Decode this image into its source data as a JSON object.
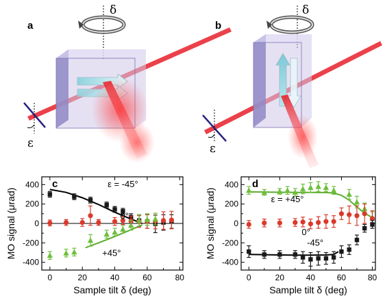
{
  "panels": {
    "a": {
      "letter": "a",
      "delta_symbol": "δ",
      "epsilon_symbol": "ε"
    },
    "b": {
      "letter": "b",
      "delta_symbol": "δ",
      "epsilon_symbol": "ε"
    }
  },
  "colors": {
    "black_series": "#1a1a1a",
    "red_series": "#d93a2b",
    "green_series": "#6fbf3c",
    "fit_black": "#000000",
    "fit_green": "#5cab2e",
    "box_face": "#cfc8ea",
    "box_side": "#8f88c6",
    "laser": "#e8202a"
  },
  "chart_data": [
    {
      "panel": "c",
      "type": "scatter",
      "xlabel": "Sample tilt δ (deg)",
      "ylabel": "MO signal (μrad)",
      "xlim": [
        -5,
        82
      ],
      "ylim": [
        -480,
        480
      ],
      "xticks": [
        0,
        20,
        40,
        60,
        80
      ],
      "yticks": [
        -400,
        -200,
        0,
        200,
        400
      ],
      "x_minor_ticks": [
        10,
        30,
        50,
        70
      ],
      "y_minor_ticks": [
        -300,
        -100,
        100,
        300
      ],
      "zero_line": true,
      "series": [
        {
          "name": "ε = -45°",
          "marker": "square",
          "color": "#1a1a1a",
          "x": [
            0,
            15,
            25,
            35,
            40,
            45,
            50,
            55,
            60,
            65,
            70,
            75
          ],
          "y": [
            300,
            275,
            240,
            190,
            145,
            125,
            65,
            30,
            20,
            -5,
            10,
            20
          ],
          "err": [
            30,
            30,
            30,
            30,
            30,
            30,
            35,
            60,
            70,
            90,
            80,
            70
          ]
        },
        {
          "name": "0°",
          "marker": "circle",
          "color": "#d93a2b",
          "x": [
            0,
            10,
            20,
            25,
            30,
            40,
            45,
            50,
            55,
            60,
            65,
            70,
            75
          ],
          "y": [
            5,
            10,
            10,
            80,
            10,
            20,
            30,
            25,
            20,
            20,
            25,
            30,
            35
          ],
          "err": [
            30,
            30,
            40,
            100,
            30,
            40,
            40,
            50,
            60,
            70,
            80,
            90,
            90
          ]
        },
        {
          "name": "+45°",
          "marker": "triangle",
          "color": "#6fbf3c",
          "x": [
            0,
            10,
            15,
            25,
            35,
            40,
            45,
            50,
            55,
            60,
            65
          ],
          "y": [
            -330,
            -305,
            -295,
            -175,
            -110,
            -90,
            -60,
            -20,
            30,
            40,
            45
          ],
          "err": [
            40,
            40,
            40,
            60,
            40,
            40,
            40,
            50,
            60,
            60,
            60
          ]
        }
      ],
      "fits": [
        {
          "color": "#000000",
          "x": [
            0,
            10,
            20,
            30,
            40,
            50,
            57
          ],
          "y": [
            350,
            320,
            265,
            195,
            115,
            45,
            0
          ]
        },
        {
          "color": "#5cab2e",
          "x": [
            22,
            30,
            40,
            50,
            57
          ],
          "y": [
            -250,
            -200,
            -135,
            -65,
            -15
          ]
        }
      ],
      "annotations": [
        {
          "text": "ε = -45°",
          "x": 45,
          "y": 375
        },
        {
          "text": "0°",
          "x": 46,
          "y": 45
        },
        {
          "text": "+45°",
          "x": 38,
          "y": -335
        }
      ]
    },
    {
      "panel": "d",
      "type": "scatter",
      "xlabel": "Sample tilt δ (deg)",
      "ylabel": "MO signal (μrad)",
      "xlim": [
        -5,
        82
      ],
      "ylim": [
        -480,
        480
      ],
      "xticks": [
        0,
        20,
        40,
        60,
        80
      ],
      "yticks": [
        -400,
        -200,
        0,
        200,
        400
      ],
      "x_minor_ticks": [
        10,
        30,
        50,
        70
      ],
      "y_minor_ticks": [
        -300,
        -100,
        100,
        300
      ],
      "zero_line": false,
      "series": [
        {
          "name": "ε = +45°",
          "marker": "triangle",
          "color": "#6fbf3c",
          "x": [
            0,
            10,
            20,
            25,
            30,
            35,
            40,
            45,
            50,
            55,
            65,
            70,
            75,
            80
          ],
          "y": [
            340,
            320,
            330,
            340,
            320,
            355,
            370,
            380,
            370,
            340,
            300,
            220,
            150,
            60
          ],
          "err": [
            40,
            30,
            30,
            40,
            40,
            50,
            50,
            50,
            40,
            40,
            50,
            60,
            60,
            60
          ]
        },
        {
          "name": "0°",
          "marker": "circle",
          "color": "#d93a2b",
          "x": [
            0,
            10,
            20,
            30,
            35,
            40,
            45,
            50,
            55,
            60,
            65,
            70,
            75,
            80
          ],
          "y": [
            -10,
            5,
            5,
            10,
            15,
            -5,
            10,
            20,
            20,
            100,
            90,
            80,
            100,
            50
          ],
          "err": [
            40,
            40,
            40,
            40,
            50,
            50,
            60,
            70,
            60,
            60,
            90,
            100,
            100,
            80
          ]
        },
        {
          "name": "-45°",
          "marker": "square",
          "color": "#1a1a1a",
          "x": [
            0,
            10,
            20,
            30,
            35,
            40,
            45,
            50,
            55,
            60,
            65,
            70,
            75,
            80
          ],
          "y": [
            -290,
            -320,
            -320,
            -320,
            -350,
            -370,
            -360,
            -360,
            -350,
            -290,
            -270,
            -170,
            -50,
            -10
          ],
          "err": [
            60,
            40,
            40,
            40,
            60,
            70,
            70,
            60,
            60,
            60,
            50,
            50,
            40,
            40
          ]
        }
      ],
      "fits": [
        {
          "color": "#5cab2e",
          "x": [
            0,
            10,
            20,
            30,
            40,
            50,
            55,
            60,
            65,
            70,
            75,
            80
          ],
          "y": [
            325,
            323,
            321,
            320,
            320,
            318,
            312,
            290,
            240,
            170,
            105,
            60
          ]
        },
        {
          "color": "#000000",
          "x": [
            0,
            10,
            20,
            30,
            40,
            50,
            55,
            58
          ],
          "y": [
            -320,
            -322,
            -325,
            -326,
            -326,
            -325,
            -320,
            -290
          ]
        }
      ],
      "annotations": [
        {
          "text": "ε = +45°",
          "x": 25,
          "y": 220
        },
        {
          "text": "0°",
          "x": 37,
          "y": -120
        },
        {
          "text": "-45°",
          "x": 43,
          "y": -230
        }
      ]
    }
  ],
  "plot_letters": {
    "c": "c",
    "d": "d"
  }
}
